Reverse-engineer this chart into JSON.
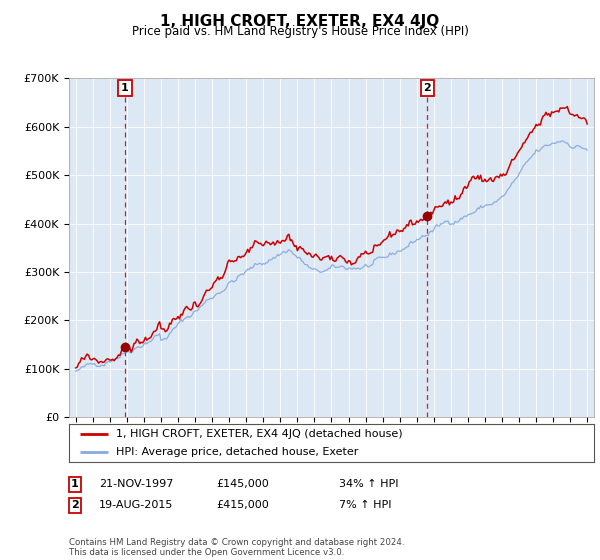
{
  "title": "1, HIGH CROFT, EXETER, EX4 4JQ",
  "subtitle": "Price paid vs. HM Land Registry's House Price Index (HPI)",
  "ylim": [
    0,
    700000
  ],
  "yticks": [
    0,
    100000,
    200000,
    300000,
    400000,
    500000,
    600000,
    700000
  ],
  "ytick_labels": [
    "£0",
    "£100K",
    "£200K",
    "£300K",
    "£400K",
    "£500K",
    "£600K",
    "£700K"
  ],
  "sale1_date": 1997.88,
  "sale1_price": 145000,
  "sale2_date": 2015.63,
  "sale2_price": 415000,
  "line1_color": "#cc0000",
  "line2_color": "#88aadd",
  "chart_bg": "#dde8f5",
  "marker_color": "#990000",
  "vline_color": "#cc0000",
  "legend_line1": "1, HIGH CROFT, EXETER, EX4 4JQ (detached house)",
  "legend_line2": "HPI: Average price, detached house, Exeter",
  "table_row1": [
    "1",
    "21-NOV-1997",
    "£145,000",
    "34% ↑ HPI"
  ],
  "table_row2": [
    "2",
    "19-AUG-2015",
    "£415,000",
    "7% ↑ HPI"
  ],
  "footnote": "Contains HM Land Registry data © Crown copyright and database right 2024.\nThis data is licensed under the Open Government Licence v3.0.",
  "background_color": "#ffffff",
  "grid_color": "#ffffff"
}
